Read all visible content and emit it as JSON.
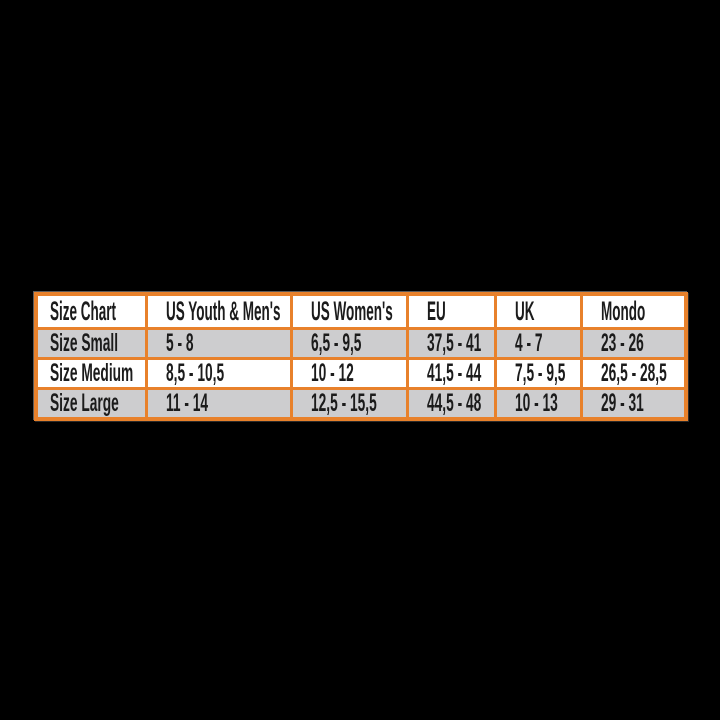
{
  "colors": {
    "page_bg": "#000000",
    "accent": "#e8812b",
    "header_bg": "#ffffff",
    "row_main": "#ffffff",
    "row_alt": "#cdcdcf",
    "text": "#1b1b1b"
  },
  "table": {
    "headers": [
      "Size Chart",
      "US Youth & Men's",
      "US Women's",
      "EU",
      "UK",
      "Mondo"
    ],
    "rows": [
      {
        "cells": [
          "Size Small",
          "5 - 8",
          "6,5 - 9,5",
          "37,5 - 41",
          "4 - 7",
          "23 - 26"
        ]
      },
      {
        "cells": [
          "Size Medium",
          "8,5 - 10,5",
          "10 - 12",
          "41,5 - 44",
          "7,5 - 9,5",
          "26,5 - 28,5"
        ]
      },
      {
        "cells": [
          "Size Large",
          "11 - 14",
          "12,5 - 15,5",
          "44,5 - 48",
          "10 - 13",
          "29 - 31"
        ]
      }
    ]
  },
  "chart_data": {
    "type": "table",
    "title": "Size Chart",
    "columns": [
      "Size Chart",
      "US Youth & Men's",
      "US Women's",
      "EU",
      "UK",
      "Mondo"
    ],
    "rows": [
      [
        "Size Small",
        "5 - 8",
        "6,5 - 9,5",
        "37,5 - 41",
        "4 - 7",
        "23 - 26"
      ],
      [
        "Size Medium",
        "8,5 - 10,5",
        "10 - 12",
        "41,5 - 44",
        "7,5 - 9,5",
        "26,5 - 28,5"
      ],
      [
        "Size Large",
        "11 - 14",
        "12,5 - 15,5",
        "44,5 - 48",
        "10 - 13",
        "29 - 31"
      ]
    ],
    "notes": "Sock/boot size conversion chart; decimal comma notation; header row white, data rows alternate gray/white; orange grid on black background"
  }
}
